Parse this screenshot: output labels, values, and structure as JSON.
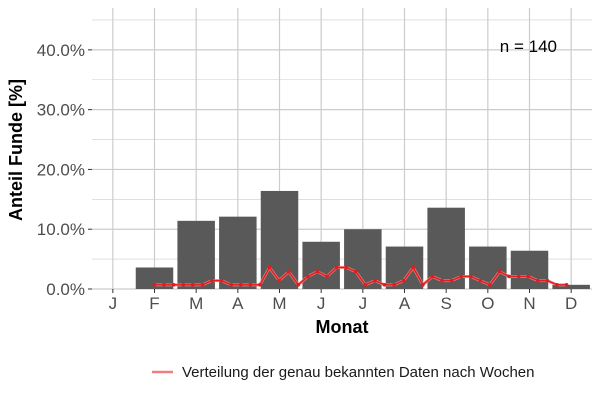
{
  "chart_data": {
    "type": "bar",
    "categories": [
      "J",
      "F",
      "M",
      "A",
      "M",
      "J",
      "J",
      "A",
      "S",
      "O",
      "N",
      "D"
    ],
    "values": [
      0.0,
      3.6,
      11.4,
      12.1,
      16.4,
      7.9,
      10.0,
      7.1,
      13.6,
      7.1,
      6.4,
      0.7
    ],
    "ylim": [
      0,
      47
    ],
    "yticks": [
      0,
      10,
      20,
      30,
      40
    ],
    "ytick_labels": [
      "0.0%",
      "10.0%",
      "20.0%",
      "30.0%",
      "40.0%"
    ],
    "xlabel": "Monat",
    "ylabel": "Anteil Funde [%]",
    "annotation": "n = 140",
    "grid": true,
    "legend_position": "bottom-right",
    "series": [
      {
        "name": "Verteilung der genau bekannten Daten nach Wochen",
        "type": "line",
        "color": "#e41a1c",
        "legend_color": "#f08080",
        "x": [
          1.0,
          1.23,
          1.46,
          1.69,
          1.92,
          2.15,
          2.38,
          2.61,
          2.84,
          3.07,
          3.3,
          3.53,
          3.76,
          3.99,
          4.22,
          4.45,
          4.68,
          4.91,
          5.14,
          5.37,
          5.6,
          5.83,
          6.06,
          6.29,
          6.52,
          6.75,
          6.98,
          7.21,
          7.44,
          7.67,
          7.9,
          8.13,
          8.36,
          8.59,
          8.82,
          9.05,
          9.28,
          9.51,
          9.74,
          9.97,
          10.2,
          10.43,
          10.66,
          10.89
        ],
        "values": [
          0.7,
          0.7,
          0.7,
          0.7,
          0.7,
          0.7,
          1.4,
          1.4,
          0.7,
          0.7,
          0.7,
          0.7,
          3.6,
          1.4,
          2.9,
          0.7,
          2.1,
          2.9,
          2.1,
          3.6,
          3.6,
          2.9,
          0.7,
          1.4,
          0.7,
          0.7,
          1.4,
          3.6,
          0.7,
          2.1,
          1.4,
          1.4,
          2.1,
          2.1,
          1.4,
          0.7,
          2.9,
          2.1,
          2.1,
          2.1,
          1.4,
          1.4,
          0.7,
          0.7
        ]
      }
    ],
    "colors": {
      "bar": "#595959",
      "grid": "#cccccc",
      "background": "#ffffff"
    }
  }
}
